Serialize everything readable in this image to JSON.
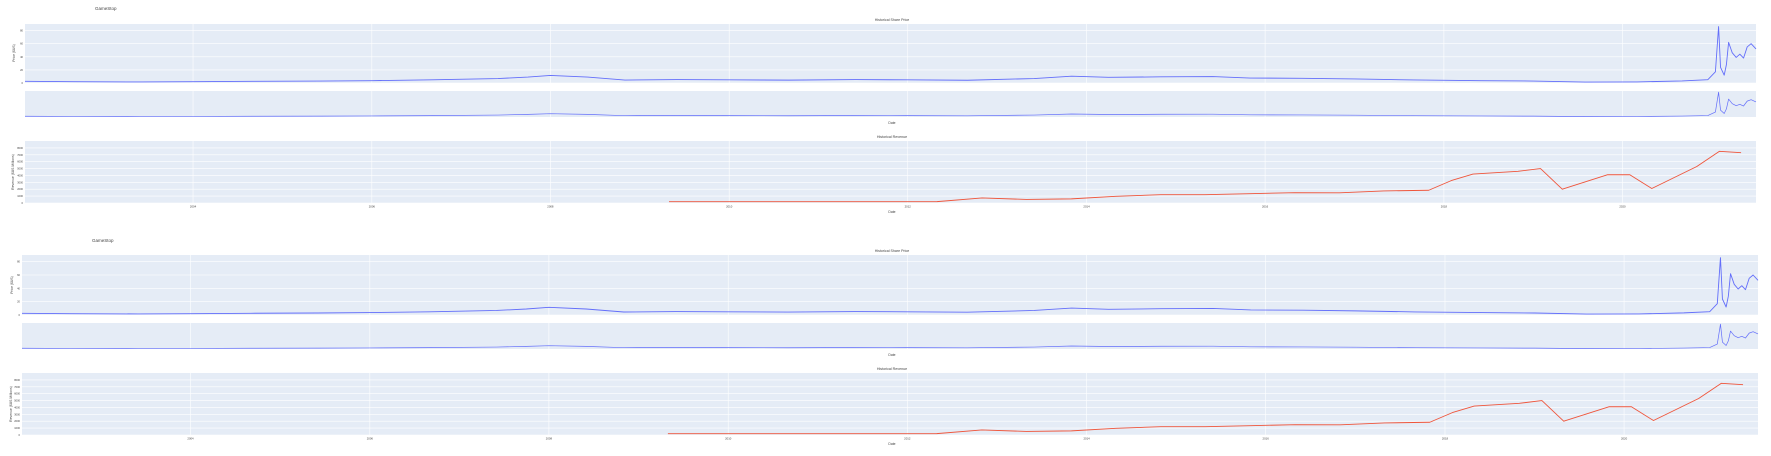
{
  "figures": [
    {
      "heading": "GameStop",
      "price_title": "Historical Share Price",
      "revenue_title": "Historical Revenue",
      "price_ylabel": "Price ($US)",
      "revenue_ylabel": "Revenue ($US Millions)",
      "xlabel": "Date"
    },
    {
      "heading": "GameStop",
      "price_title": "Historical Share Price",
      "revenue_title": "Historical Revenue",
      "price_ylabel": "Price ($US)",
      "revenue_ylabel": "Revenue ($US Millions)",
      "xlabel": "Date"
    }
  ],
  "colors": {
    "price": "#636efa",
    "revenue": "#ef553b",
    "plot_bg": "#e5ecf6",
    "grid": "#ffffff"
  },
  "chart_data": [
    {
      "type": "line",
      "title": "Historical Share Price",
      "xlabel": "Date",
      "ylabel": "Price ($US)",
      "xlim": [
        "2002-02-13",
        "2021-06-30"
      ],
      "ylim": [
        0,
        90
      ],
      "x_ticks": [
        "2004",
        "2006",
        "2008",
        "2010",
        "2012",
        "2014",
        "2016",
        "2018",
        "2020"
      ],
      "y_ticks": [
        0,
        20,
        40,
        60,
        80
      ],
      "series": [
        {
          "x": [
            "2002-02-13",
            "2002-09-01",
            "2003-06-01",
            "2004-01-01",
            "2004-09-01",
            "2005-06-01",
            "2006-01-01",
            "2006-09-01",
            "2007-06-01",
            "2007-10-01",
            "2008-01-01",
            "2008-06-01",
            "2008-11-01",
            "2009-06-01",
            "2010-01-01",
            "2010-09-01",
            "2011-06-01",
            "2012-01-01",
            "2012-09-01",
            "2013-06-01",
            "2013-11-01",
            "2014-04-01",
            "2014-11-01",
            "2015-06-01",
            "2015-11-01",
            "2016-06-01",
            "2017-01-01",
            "2017-09-01",
            "2018-06-01",
            "2019-01-01",
            "2019-08-01",
            "2020-03-01",
            "2020-09-01",
            "2020-12-15",
            "2021-01-15",
            "2021-01-28",
            "2021-02-05",
            "2021-02-20",
            "2021-03-01",
            "2021-03-10",
            "2021-03-25",
            "2021-04-10",
            "2021-04-25",
            "2021-05-10",
            "2021-05-25",
            "2021-06-10",
            "2021-06-30"
          ],
          "y": [
            2.6,
            2.0,
            1.6,
            2.0,
            2.6,
            3.0,
            3.6,
            4.8,
            6.8,
            9.0,
            11.5,
            9.0,
            4.5,
            5.2,
            4.8,
            4.4,
            5.2,
            4.8,
            4.2,
            6.8,
            10.4,
            8.6,
            9.4,
            9.8,
            7.6,
            7.2,
            6.2,
            4.6,
            3.6,
            3.0,
            1.4,
            1.6,
            3.2,
            5.0,
            17.0,
            86.0,
            24.0,
            12.0,
            28.0,
            62.0,
            46.0,
            39.0,
            44.0,
            38.0,
            55.0,
            60.0,
            52.0
          ]
        }
      ]
    },
    {
      "type": "line",
      "title": "Historical Revenue",
      "xlabel": "Date",
      "ylabel": "Revenue ($US Millions)",
      "xlim": [
        "2002-02-13",
        "2021-06-30"
      ],
      "ylim": [
        0,
        9000
      ],
      "x_ticks": [
        "2004",
        "2006",
        "2008",
        "2010",
        "2012",
        "2014",
        "2016",
        "2018",
        "2020"
      ],
      "y_ticks": [
        0,
        1000,
        2000,
        3000,
        4000,
        5000,
        6000,
        7000,
        8000
      ],
      "series": [
        {
          "x": [
            "2009-04-30",
            "2010-04-30",
            "2011-04-30",
            "2012-04-30",
            "2012-10-31",
            "2013-04-30",
            "2013-10-31",
            "2014-04-30",
            "2014-10-31",
            "2015-04-30",
            "2015-10-31",
            "2016-04-30",
            "2016-10-31",
            "2017-04-30",
            "2017-10-31",
            "2018-01-31",
            "2018-04-30",
            "2018-10-31",
            "2019-01-31",
            "2019-04-30",
            "2019-10-31",
            "2020-01-31",
            "2020-04-30",
            "2020-10-31",
            "2021-01-31",
            "2021-04-30"
          ],
          "y": [
            189,
            191,
            194,
            200,
            730,
            520,
            600,
            970,
            1200,
            1200,
            1350,
            1500,
            1480,
            1750,
            1850,
            3250,
            4200,
            4600,
            5000,
            2000,
            4100,
            4100,
            2100,
            5300,
            7500,
            7300
          ]
        }
      ]
    },
    {
      "type": "line",
      "title": "Historical Share Price",
      "xlabel": "Date",
      "ylabel": "Price ($US)",
      "xlim": [
        "2002-02-13",
        "2021-06-30"
      ],
      "ylim": [
        0,
        90
      ],
      "x_ticks": [
        "2004",
        "2006",
        "2008",
        "2010",
        "2012",
        "2014",
        "2016",
        "2018",
        "2020"
      ],
      "y_ticks": [
        0,
        20,
        40,
        60,
        80
      ],
      "series": [
        {
          "x": [
            "2002-02-13",
            "2002-09-01",
            "2003-06-01",
            "2004-01-01",
            "2004-09-01",
            "2005-06-01",
            "2006-01-01",
            "2006-09-01",
            "2007-06-01",
            "2007-10-01",
            "2008-01-01",
            "2008-06-01",
            "2008-11-01",
            "2009-06-01",
            "2010-01-01",
            "2010-09-01",
            "2011-06-01",
            "2012-01-01",
            "2012-09-01",
            "2013-06-01",
            "2013-11-01",
            "2014-04-01",
            "2014-11-01",
            "2015-06-01",
            "2015-11-01",
            "2016-06-01",
            "2017-01-01",
            "2017-09-01",
            "2018-06-01",
            "2019-01-01",
            "2019-08-01",
            "2020-03-01",
            "2020-09-01",
            "2020-12-15",
            "2021-01-15",
            "2021-01-28",
            "2021-02-05",
            "2021-02-20",
            "2021-03-01",
            "2021-03-10",
            "2021-03-25",
            "2021-04-10",
            "2021-04-25",
            "2021-05-10",
            "2021-05-25",
            "2021-06-10",
            "2021-06-30"
          ],
          "y": [
            2.6,
            2.0,
            1.6,
            2.0,
            2.6,
            3.0,
            3.6,
            4.8,
            6.8,
            9.0,
            11.5,
            9.0,
            4.5,
            5.2,
            4.8,
            4.4,
            5.2,
            4.8,
            4.2,
            6.8,
            10.4,
            8.6,
            9.4,
            9.8,
            7.6,
            7.2,
            6.2,
            4.6,
            3.6,
            3.0,
            1.4,
            1.6,
            3.2,
            5.0,
            17.0,
            86.0,
            24.0,
            12.0,
            28.0,
            62.0,
            46.0,
            39.0,
            44.0,
            38.0,
            55.0,
            60.0,
            52.0
          ]
        }
      ]
    },
    {
      "type": "line",
      "title": "Historical Revenue",
      "xlabel": "Date",
      "ylabel": "Revenue ($US Millions)",
      "xlim": [
        "2002-02-13",
        "2021-06-30"
      ],
      "ylim": [
        0,
        9000
      ],
      "x_ticks": [
        "2004",
        "2006",
        "2008",
        "2010",
        "2012",
        "2014",
        "2016",
        "2018",
        "2020"
      ],
      "y_ticks": [
        0,
        1000,
        2000,
        3000,
        4000,
        5000,
        6000,
        7000,
        8000
      ],
      "series": [
        {
          "x": [
            "2009-04-30",
            "2010-04-30",
            "2011-04-30",
            "2012-04-30",
            "2012-10-31",
            "2013-04-30",
            "2013-10-31",
            "2014-04-30",
            "2014-10-31",
            "2015-04-30",
            "2015-10-31",
            "2016-04-30",
            "2016-10-31",
            "2017-04-30",
            "2017-10-31",
            "2018-01-31",
            "2018-04-30",
            "2018-10-31",
            "2019-01-31",
            "2019-04-30",
            "2019-10-31",
            "2020-01-31",
            "2020-04-30",
            "2020-10-31",
            "2021-01-31",
            "2021-04-30"
          ],
          "y": [
            189,
            191,
            194,
            200,
            730,
            520,
            600,
            970,
            1200,
            1200,
            1350,
            1500,
            1480,
            1750,
            1850,
            3250,
            4200,
            4600,
            5000,
            2000,
            4100,
            4100,
            2100,
            5300,
            7500,
            7300
          ]
        }
      ]
    }
  ]
}
